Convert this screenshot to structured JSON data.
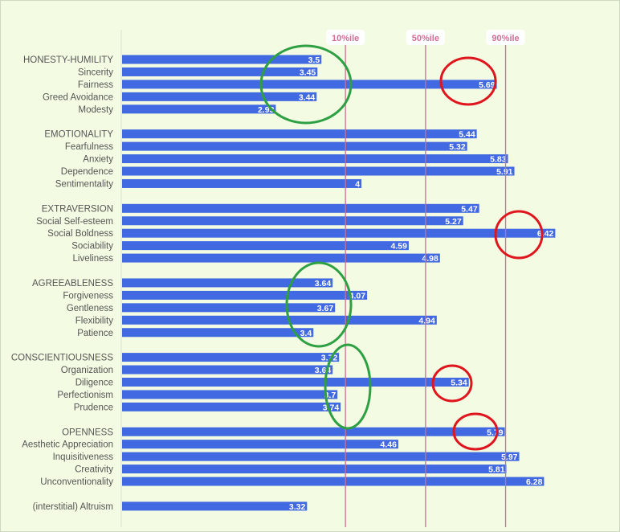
{
  "chart_data": {
    "type": "bar",
    "orientation": "horizontal",
    "xlim": [
      1,
      7
    ],
    "bar_color": "#4169e1",
    "reference_color": "#cc6f93",
    "reference_lines": [
      {
        "label": "10%ile",
        "value": 3.8
      },
      {
        "label": "50%ile",
        "value": 4.8
      },
      {
        "label": "90%ile",
        "value": 5.8
      }
    ],
    "groups": [
      {
        "items": [
          {
            "name": "HONESTY-HUMILITY",
            "value": 3.5
          },
          {
            "name": "Sincerity",
            "value": 3.45
          },
          {
            "name": "Fairness",
            "value": 5.69
          },
          {
            "name": "Greed Avoidance",
            "value": 3.44
          },
          {
            "name": "Modesty",
            "value": 2.93
          }
        ]
      },
      {
        "items": [
          {
            "name": "EMOTIONALITY",
            "value": 5.44
          },
          {
            "name": "Fearfulness",
            "value": 5.32
          },
          {
            "name": "Anxiety",
            "value": 5.83
          },
          {
            "name": "Dependence",
            "value": 5.91
          },
          {
            "name": "Sentimentality",
            "value": 4
          }
        ]
      },
      {
        "items": [
          {
            "name": "EXTRAVERSION",
            "value": 5.47
          },
          {
            "name": "Social Self-esteem",
            "value": 5.27
          },
          {
            "name": "Social Boldness",
            "value": 6.42
          },
          {
            "name": "Sociability",
            "value": 4.59
          },
          {
            "name": "Liveliness",
            "value": 4.98
          }
        ]
      },
      {
        "items": [
          {
            "name": "AGREEABLENESS",
            "value": 3.64
          },
          {
            "name": "Forgiveness",
            "value": 4.07
          },
          {
            "name": "Gentleness",
            "value": 3.67
          },
          {
            "name": "Flexibility",
            "value": 4.94
          },
          {
            "name": "Patience",
            "value": 3.4
          }
        ]
      },
      {
        "items": [
          {
            "name": "CONSCIENTIOUSNESS",
            "value": 3.72
          },
          {
            "name": "Organization",
            "value": 3.64
          },
          {
            "name": "Diligence",
            "value": 5.34
          },
          {
            "name": "Perfectionism",
            "value": 3.7
          },
          {
            "name": "Prudence",
            "value": 3.74
          }
        ]
      },
      {
        "items": [
          {
            "name": "OPENNESS",
            "value": 5.79
          },
          {
            "name": "Aesthetic Appreciation",
            "value": 4.46
          },
          {
            "name": "Inquisitiveness",
            "value": 5.97
          },
          {
            "name": "Creativity",
            "value": 5.81
          },
          {
            "name": "Unconventionality",
            "value": 6.28
          }
        ]
      },
      {
        "items": [
          {
            "name": "(interstitial) Altruism",
            "value": 3.32
          }
        ]
      }
    ],
    "annotations": [
      {
        "type": "ellipse",
        "color": "#2ea043",
        "label": "low-scores-honesty-humility"
      },
      {
        "type": "ellipse",
        "color": "#2ea043",
        "label": "low-scores-agreeableness"
      },
      {
        "type": "ellipse",
        "color": "#2ea043",
        "label": "low-scores-conscientiousness"
      },
      {
        "type": "ellipse",
        "color": "#e0161e",
        "label": "high-score-fairness"
      },
      {
        "type": "ellipse",
        "color": "#e0161e",
        "label": "high-score-social-boldness"
      },
      {
        "type": "ellipse",
        "color": "#e0161e",
        "label": "high-score-diligence"
      },
      {
        "type": "ellipse",
        "color": "#e0161e",
        "label": "high-score-openness"
      }
    ]
  }
}
